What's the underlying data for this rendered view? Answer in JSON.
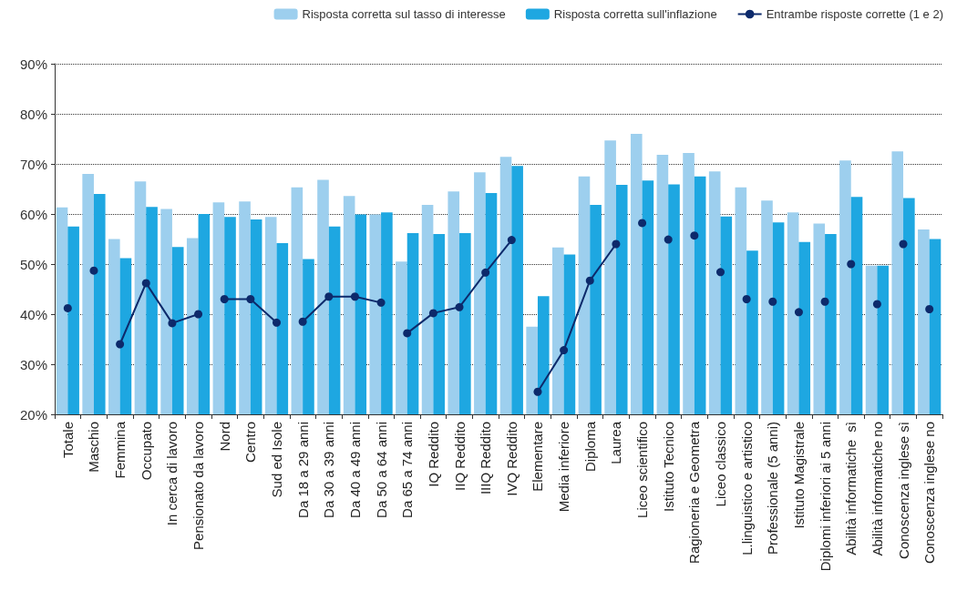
{
  "chart_data": {
    "type": "bar",
    "categories": [
      "Totale",
      "Maschio",
      "Femmina",
      "Occupato",
      "In cerca di lavoro",
      "Pensionato da lavoro",
      "Nord",
      "Centro",
      "Sud ed Isole",
      "Da 18 a 29 anni",
      "Da 30 a 39 anni",
      "Da 40 a 49 anni",
      "Da 50 a 64 anni",
      "Da 65 a 74 anni",
      "IQ Reddito",
      "IIQ Reddito",
      "IIIQ Reddito",
      "IVQ Reddito",
      "Elementare",
      "Media inferiore",
      "Diploma",
      "Laurea",
      "Liceo scientifico",
      "Istituto Tecnico",
      "Ragioneria e Geometra",
      "Liceo classico",
      "L.linguistico e artistico",
      "Professionale (5 anni)",
      "Istituto Magistrale",
      "Diplomi inferiori ai 5 anni",
      "Abilità informatiche  sì",
      "Abilità informatiche no",
      "Conoscenza inglese sì",
      "Conoscenza inglese no"
    ],
    "series": [
      {
        "name": "Risposta corretta sul tasso di interesse",
        "color": "#9dcfee",
        "values": [
          61.3,
          68,
          55,
          66.5,
          61,
          55.2,
          62.3,
          62.5,
          59.4,
          65.3,
          66.8,
          63.6,
          59.9,
          50.5,
          61.8,
          64.5,
          68.3,
          71.4,
          37.5,
          53.3,
          67.5,
          74.7,
          76,
          71.8,
          72.2,
          68.5,
          65.3,
          62.7,
          60.3,
          58.1,
          70.7,
          49.7,
          72.5,
          56.9
        ]
      },
      {
        "name": "Risposta corretta sull'inflazione",
        "color": "#1ea7e1",
        "values": [
          57.5,
          64,
          51.2,
          61.4,
          53.4,
          60,
          59.4,
          58.9,
          54.2,
          51,
          57.5,
          59.9,
          60.3,
          56.2,
          56,
          56.2,
          64.2,
          69.6,
          43.6,
          51.9,
          61.8,
          65.8,
          66.7,
          65.9,
          67.5,
          59.5,
          52.7,
          58.3,
          54.4,
          56,
          63.4,
          49.7,
          63.2,
          55
        ]
      },
      {
        "type": "line",
        "name": "Entrambe risposte corrette (1 e 2)",
        "color": "#0d2a6b",
        "values": [
          41.2,
          null,
          34,
          46.2,
          38.2,
          40,
          null,
          null,
          null,
          38.5,
          43.5,
          43.5,
          42.3,
          null,
          null,
          null,
          null,
          null,
          24.5,
          32.8,
          46.7,
          54,
          null,
          54.9,
          null,
          48.4,
          null,
          42.5,
          null,
          42.5,
          null,
          42,
          null,
          41
        ]
      },
      {
        "type": "line",
        "color": "#0d2a6b",
        "values": [
          null,
          48.7,
          null,
          null,
          null,
          null,
          43,
          43,
          38.3,
          null,
          null,
          null,
          null,
          36.2,
          40.2,
          41.4,
          48.3,
          54.8,
          null,
          null,
          null,
          null,
          58.2,
          null,
          55.7,
          null,
          43,
          null,
          40.4,
          null,
          50,
          null,
          54,
          null
        ]
      }
    ],
    "ylim": [
      20,
      90
    ],
    "yticks": [
      {
        "value": 20,
        "label": "20%"
      },
      {
        "value": 30,
        "label": "30%"
      },
      {
        "value": 40,
        "label": "40%"
      },
      {
        "value": 50,
        "label": "50%"
      },
      {
        "value": 60,
        "label": "60%"
      },
      {
        "value": 70,
        "label": "70%"
      },
      {
        "value": 80,
        "label": "80%"
      },
      {
        "value": 90,
        "label": "90%"
      }
    ],
    "grid": "y",
    "legend": "top right",
    "marker": "circle",
    "line_style": "solid"
  }
}
